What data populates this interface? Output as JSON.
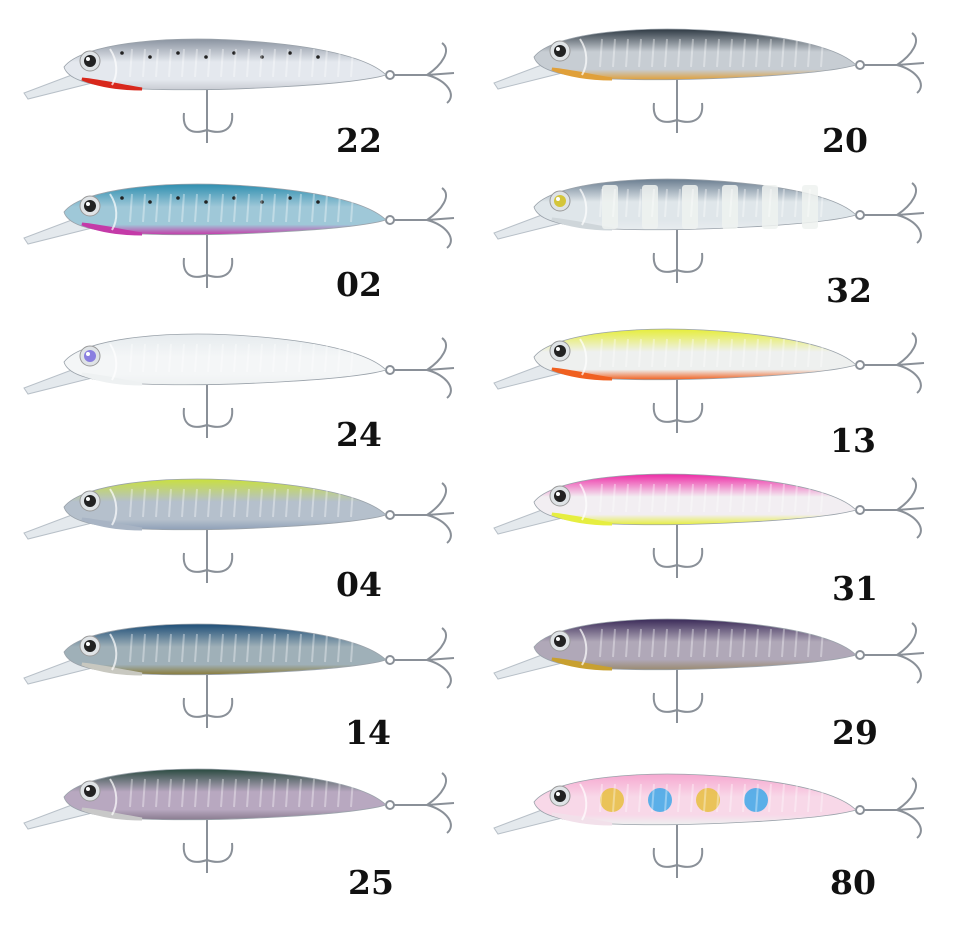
{
  "lures": [
    {
      "code": "22",
      "column": "left",
      "top": "#8a93a0",
      "mid": "#e4e8ee",
      "belly": "#c9ccd3",
      "throat": "#d8281c",
      "eye": "#222",
      "spots": true
    },
    {
      "code": "20",
      "column": "right",
      "top": "#2f3a44",
      "mid": "#c7cdd3",
      "belly": "#e0a03a",
      "throat": "#e0a03a",
      "eye": "#222",
      "spots": false
    },
    {
      "code": "02",
      "column": "left",
      "top": "#2f8fb0",
      "mid": "#9fc8d8",
      "belly": "#c43aa8",
      "throat": "#c43aa8",
      "eye": "#222",
      "spots": true
    },
    {
      "code": "32",
      "column": "right",
      "top": "#6a7d90",
      "mid": "#dfe6ea",
      "belly": "#e8ecef",
      "throat": "#cfd6da",
      "eye": "#d4c53a",
      "bands": true
    },
    {
      "code": "24",
      "column": "left",
      "top": "#e6ebee",
      "mid": "#f4f6f7",
      "belly": "#eef1f2",
      "throat": "#eef1f2",
      "eye": "#8a7fe0",
      "spots": false
    },
    {
      "code": "13",
      "column": "right",
      "top": "#e6ee3a",
      "mid": "#eef0ef",
      "belly": "#f06020",
      "throat": "#f06020",
      "eye": "#222",
      "spots": false
    },
    {
      "code": "04",
      "column": "left",
      "top": "#c9e040",
      "mid": "#b5c0cc",
      "belly": "#8fa0b8",
      "throat": "#a8b4c4",
      "eye": "#222",
      "spots": false
    },
    {
      "code": "31",
      "column": "right",
      "top": "#ee2aa6",
      "mid": "#f2eef2",
      "belly": "#e6ee40",
      "throat": "#e6ee40",
      "eye": "#222",
      "spots": false
    },
    {
      "code": "14",
      "column": "left",
      "top": "#1f4f78",
      "mid": "#9fb0b8",
      "belly": "#8a7c3a",
      "throat": "#c8c8c0",
      "eye": "#222",
      "spots": false
    },
    {
      "code": "29",
      "column": "right",
      "top": "#3a2a58",
      "mid": "#b0a8b8",
      "belly": "#9a8a70",
      "throat": "#c8a030",
      "eye": "#222",
      "spots": false
    },
    {
      "code": "25",
      "column": "left",
      "top": "#2a4a40",
      "mid": "#b8a8c0",
      "belly": "#8a7c90",
      "throat": "#c8c8c8",
      "eye": "#222",
      "spots": false
    },
    {
      "code": "80",
      "column": "right",
      "top": "#f6a8d0",
      "mid": "#f8d8e8",
      "belly": "#eef0f0",
      "throat": "#f2e0ea",
      "eye": "#222",
      "dots": [
        "#e8c040",
        "#40a8e8",
        "#e8c040",
        "#40a8e8"
      ]
    }
  ]
}
